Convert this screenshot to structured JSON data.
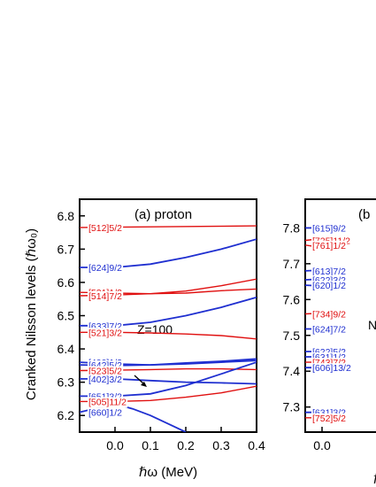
{
  "chart_data": [
    {
      "type": "line",
      "panel": "(a) proton",
      "annotation": "Z=100",
      "xlabel": "ℏω (MeV)",
      "ylabel": "Cranked Nilsson levels (ℏω₀)",
      "xlim": [
        -0.1,
        0.4
      ],
      "ylim": [
        6.15,
        6.85
      ],
      "xticks": [
        "0.0",
        "0.1",
        "0.2",
        "0.3",
        "0.4"
      ],
      "yticks": [
        "6.2",
        "6.3",
        "6.4",
        "6.5",
        "6.6",
        "6.7",
        "6.8"
      ],
      "colors": {
        "blue": "#1f2fd0",
        "red": "#e01010"
      },
      "series": [
        {
          "name": "[512]5/2",
          "color": "red",
          "x": [
            -0.1,
            0.4
          ],
          "y": [
            6.765,
            6.77
          ]
        },
        {
          "name": "[624]9/2",
          "color": "blue",
          "x": [
            -0.1,
            0.0,
            0.1,
            0.2,
            0.3,
            0.4
          ],
          "y": [
            6.645,
            6.645,
            6.655,
            6.675,
            6.7,
            6.73
          ]
        },
        {
          "name": "[521]1/2",
          "color": "red",
          "x": [
            -0.1,
            0.0,
            0.1,
            0.2,
            0.3,
            0.4
          ],
          "y": [
            6.57,
            6.568,
            6.566,
            6.568,
            6.575,
            6.58
          ]
        },
        {
          "name": "[514]7/2",
          "color": "red",
          "x": [
            -0.1,
            0.0,
            0.1,
            0.2,
            0.3,
            0.4
          ],
          "y": [
            6.56,
            6.562,
            6.566,
            6.574,
            6.59,
            6.61
          ]
        },
        {
          "name": "[633]7/2",
          "color": "blue",
          "x": [
            -0.1,
            0.0,
            0.1,
            0.2,
            0.3,
            0.4
          ],
          "y": [
            6.47,
            6.47,
            6.48,
            6.5,
            6.525,
            6.555
          ]
        },
        {
          "name": "[521]3/2",
          "color": "red",
          "x": [
            -0.1,
            0.0,
            0.1,
            0.2,
            0.3,
            0.4
          ],
          "y": [
            6.45,
            6.45,
            6.448,
            6.445,
            6.44,
            6.43
          ]
        },
        {
          "name": "[400]1/2",
          "color": "blue",
          "x": [
            -0.1,
            0.0,
            0.1,
            0.2,
            0.3,
            0.4
          ],
          "y": [
            6.36,
            6.355,
            6.352,
            6.355,
            6.36,
            6.365
          ]
        },
        {
          "name": "[642]5/2",
          "color": "blue",
          "x": [
            -0.1,
            0.0,
            0.1,
            0.2,
            0.3,
            0.4
          ],
          "y": [
            6.352,
            6.35,
            6.352,
            6.358,
            6.363,
            6.37
          ]
        },
        {
          "name": "[523]5/2",
          "color": "red",
          "x": [
            -0.1,
            0.0,
            0.1,
            0.2,
            0.3,
            0.4
          ],
          "y": [
            6.335,
            6.336,
            6.338,
            6.34,
            6.34,
            6.338
          ]
        },
        {
          "name": "[402]3/2",
          "color": "blue",
          "x": [
            -0.1,
            0.0,
            0.1,
            0.2,
            0.3,
            0.4
          ],
          "y": [
            6.31,
            6.31,
            6.305,
            6.3,
            6.298,
            6.295
          ]
        },
        {
          "name": "[651]3/2",
          "color": "blue",
          "x": [
            -0.1,
            0.0,
            0.1,
            0.2,
            0.3,
            0.4
          ],
          "y": [
            6.258,
            6.258,
            6.265,
            6.29,
            6.325,
            6.36
          ]
        },
        {
          "name": "[505]11/2",
          "color": "red",
          "x": [
            -0.1,
            0.0,
            0.1,
            0.2,
            0.3,
            0.4
          ],
          "y": [
            6.242,
            6.242,
            6.245,
            6.255,
            6.268,
            6.288
          ]
        },
        {
          "name": "[660]1/2",
          "color": "blue",
          "x": [
            -0.1,
            0.0,
            0.05,
            0.1,
            0.15,
            0.2
          ],
          "y": [
            6.21,
            6.235,
            6.22,
            6.2,
            6.175,
            6.15
          ]
        }
      ]
    },
    {
      "type": "line",
      "panel": "(b",
      "annotation": "N",
      "xlabel": "ℏ",
      "xlim": [
        -0.1,
        0.4
      ],
      "ylim": [
        7.23,
        7.88
      ],
      "xticks": [
        "0.0"
      ],
      "yticks": [
        "7.3",
        "7.4",
        "7.5",
        "7.6",
        "7.7",
        "7.8"
      ],
      "series": [
        {
          "name": "[615]9/2",
          "color": "blue",
          "x": [
            -0.1,
            0.0
          ],
          "y": [
            7.8,
            7.8
          ]
        },
        {
          "name": "[725]11/2",
          "color": "red",
          "x": [
            -0.1,
            0.0
          ],
          "y": [
            7.765,
            7.77
          ]
        },
        {
          "name": "[761]1/2",
          "color": "red",
          "x": [
            -0.1,
            0.0
          ],
          "y": [
            7.752,
            7.745
          ]
        },
        {
          "name": "[613]7/2",
          "color": "blue",
          "x": [
            -0.1,
            0.0
          ],
          "y": [
            7.68,
            7.682
          ]
        },
        {
          "name": "[622]3/2",
          "color": "blue",
          "x": [
            -0.1,
            0.0
          ],
          "y": [
            7.655,
            7.657
          ]
        },
        {
          "name": "[620]1/2",
          "color": "blue",
          "x": [
            -0.1,
            0.0
          ],
          "y": [
            7.64,
            7.638
          ]
        },
        {
          "name": "[734]9/2",
          "color": "red",
          "x": [
            -0.1,
            0.0
          ],
          "y": [
            7.56,
            7.562
          ]
        },
        {
          "name": "[624]7/2",
          "color": "blue",
          "x": [
            -0.1,
            0.0
          ],
          "y": [
            7.518,
            7.518
          ]
        },
        {
          "name": "[622]5/2",
          "color": "blue",
          "x": [
            -0.1,
            0.0
          ],
          "y": [
            7.455,
            7.455
          ]
        },
        {
          "name": "[631]1/2",
          "color": "blue",
          "x": [
            -0.1,
            0.0
          ],
          "y": [
            7.44,
            7.44
          ]
        },
        {
          "name": "[743]7/2",
          "color": "red",
          "x": [
            -0.1,
            0.0
          ],
          "y": [
            7.425,
            7.425
          ]
        },
        {
          "name": "[606]13/2",
          "color": "blue",
          "x": [
            -0.1,
            0.0
          ],
          "y": [
            7.41,
            7.41
          ]
        },
        {
          "name": "[631]3/2",
          "color": "blue",
          "x": [
            -0.1,
            0.0
          ],
          "y": [
            7.285,
            7.285
          ]
        },
        {
          "name": "[752]5/2",
          "color": "red",
          "x": [
            -0.1,
            0.0
          ],
          "y": [
            7.27,
            7.27
          ]
        }
      ]
    }
  ]
}
